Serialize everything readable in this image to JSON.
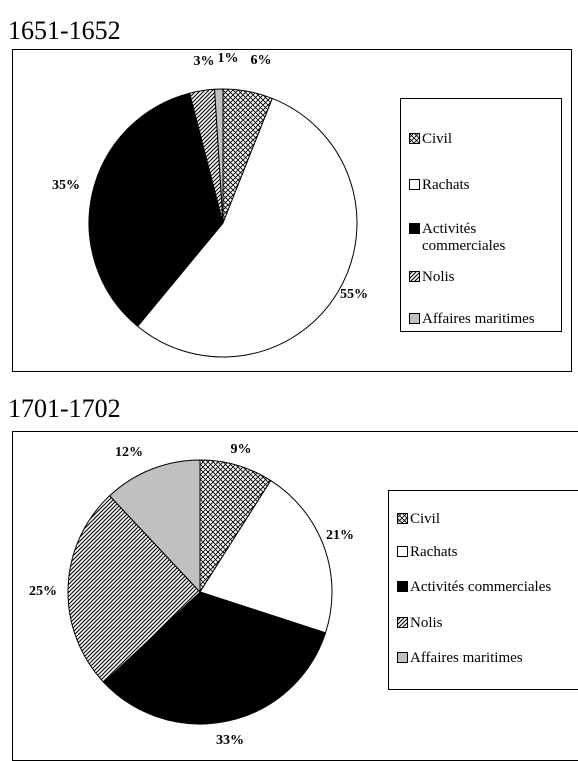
{
  "colors": {
    "Civil": "pattern-crosshatch",
    "Rachats": "#ffffff",
    "Activités commerciales": "#000000",
    "Nolis": "pattern-diagonal-stripes",
    "Affaires maritimes": "#c0c0c0"
  },
  "chart_data": [
    {
      "type": "pie",
      "title": "1651-1652",
      "categories": [
        "Civil",
        "Rachats",
        "Activités commerciales",
        "Nolis",
        "Affaires maritimes"
      ],
      "legend_labels": [
        "Civil",
        "Rachats",
        "Activités commerciales",
        "Nolis",
        "Affaires maritimes"
      ],
      "values": [
        6,
        55,
        35,
        3,
        1
      ],
      "labels": [
        "6%",
        "55%",
        "35%",
        "3%",
        "1%"
      ],
      "legend_placement": "right"
    },
    {
      "type": "pie",
      "title": "1701-1702",
      "categories": [
        "Civil",
        "Rachats",
        "Activités commerciales",
        "Nolis",
        "Affaires maritimes"
      ],
      "legend_labels": [
        "Civil",
        "Rachats",
        "Activités commerciales",
        "Nolis",
        "Affaires maritimes"
      ],
      "values": [
        9,
        21,
        33,
        25,
        12
      ],
      "labels": [
        "9%",
        "21%",
        "33%",
        "25%",
        "12%"
      ],
      "legend_placement": "right"
    }
  ]
}
